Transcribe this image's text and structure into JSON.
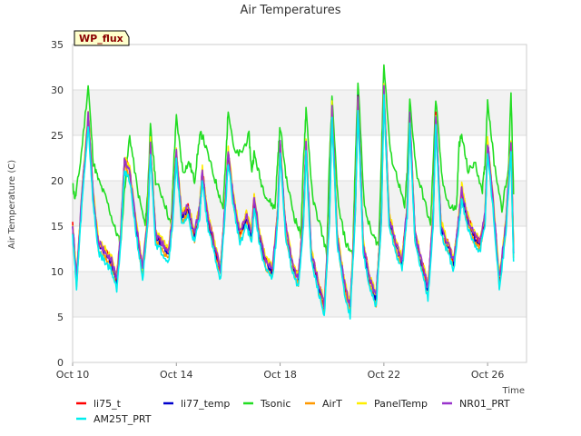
{
  "chart_data": {
    "type": "line",
    "title": "Air Temperatures",
    "xlabel": "Time",
    "ylabel": "Air Temperature (C)",
    "badge": "WP_flux",
    "ylim": [
      0,
      35
    ],
    "xlim": [
      0,
      17.5
    ],
    "y_ticks": [
      0,
      5,
      10,
      15,
      20,
      25,
      30,
      35
    ],
    "x_ticks": [
      {
        "pos": 0,
        "label": "Oct 10"
      },
      {
        "pos": 4,
        "label": "Oct 14"
      },
      {
        "pos": 8,
        "label": "Oct 18"
      },
      {
        "pos": 12,
        "label": "Oct 22"
      },
      {
        "pos": 16,
        "label": "Oct 26"
      }
    ],
    "grid": "horizontal shaded bands",
    "legend_position": "bottom",
    "x_unit": "days since Oct 10",
    "base_profile": {
      "x": [
        0.0,
        0.15,
        0.35,
        0.6,
        0.8,
        1.0,
        1.25,
        1.5,
        1.7,
        1.85,
        2.0,
        2.2,
        2.45,
        2.7,
        2.9,
        3.0,
        3.2,
        3.45,
        3.7,
        3.85,
        4.0,
        4.2,
        4.45,
        4.7,
        4.9,
        5.0,
        5.2,
        5.45,
        5.7,
        5.85,
        6.0,
        6.2,
        6.45,
        6.7,
        6.9,
        7.0,
        7.2,
        7.45,
        7.7,
        7.9,
        8.0,
        8.2,
        8.45,
        8.7,
        8.9,
        9.0,
        9.2,
        9.45,
        9.7,
        9.9,
        10.0,
        10.2,
        10.45,
        10.7,
        10.9,
        11.0,
        11.2,
        11.45,
        11.7,
        11.9,
        12.0,
        12.2,
        12.45,
        12.7,
        12.9,
        13.0,
        13.2,
        13.45,
        13.7,
        13.9,
        14.0,
        14.2,
        14.45,
        14.7,
        14.9,
        15.0,
        15.2,
        15.45,
        15.7,
        15.9,
        16.0,
        16.2,
        16.45,
        16.7,
        16.9,
        17.0
      ],
      "y": [
        15,
        9,
        18,
        27,
        18,
        13,
        12,
        11,
        9,
        14,
        22,
        21,
        15,
        10,
        16,
        24,
        14,
        13,
        12,
        16,
        23,
        16,
        17,
        14,
        17,
        21,
        16,
        13,
        10,
        16,
        23,
        18,
        14,
        16,
        14,
        18,
        14,
        11,
        10,
        16,
        24,
        15,
        11,
        9,
        16,
        24,
        12,
        9,
        6,
        16,
        28,
        14,
        9,
        6,
        17,
        29,
        13,
        9,
        7,
        16,
        30,
        16,
        13,
        11,
        17,
        27,
        14,
        11,
        8,
        16,
        27,
        15,
        13,
        11,
        16,
        19,
        16,
        14,
        13,
        16,
        24,
        18,
        9,
        15,
        24,
        12
      ]
    },
    "series": [
      {
        "name": "li75_t",
        "color": "#ff0000",
        "offset": 0.3
      },
      {
        "name": "li77_temp",
        "color": "#0000cd",
        "offset": 0.0
      },
      {
        "name": "Tsonic",
        "color": "#22dd22",
        "offset": 0.0
      },
      {
        "name": "AirT",
        "color": "#ff9900",
        "offset": -0.5
      },
      {
        "name": "PanelTemp",
        "color": "#ffee00",
        "offset": 0.5
      },
      {
        "name": "NR01_PRT",
        "color": "#9933cc",
        "offset": 0.2
      },
      {
        "name": "AM25T_PRT",
        "color": "#00eeee",
        "offset": -0.9
      }
    ],
    "tsonic": {
      "x": [
        0.0,
        0.1,
        0.3,
        0.6,
        0.8,
        1.0,
        1.3,
        1.6,
        1.85,
        2.0,
        2.2,
        2.5,
        2.8,
        2.9,
        3.0,
        3.2,
        3.5,
        3.8,
        3.9,
        4.0,
        4.25,
        4.5,
        4.7,
        4.9,
        5.0,
        5.3,
        5.6,
        5.8,
        5.9,
        6.0,
        6.25,
        6.5,
        6.8,
        6.9,
        7.0,
        7.25,
        7.5,
        7.8,
        7.9,
        8.0,
        8.25,
        8.55,
        8.8,
        8.9,
        9.0,
        9.25,
        9.55,
        9.8,
        9.9,
        10.0,
        10.25,
        10.55,
        10.8,
        10.9,
        11.0,
        11.25,
        11.55,
        11.8,
        11.9,
        12.0,
        12.25,
        12.55,
        12.8,
        12.9,
        13.0,
        13.25,
        13.55,
        13.8,
        13.9,
        14.0,
        14.25,
        14.55,
        14.8,
        14.9,
        15.0,
        15.25,
        15.5,
        15.8,
        15.9,
        16.0,
        16.25,
        16.55,
        16.8,
        16.9,
        17.0
      ],
      "y": [
        19.5,
        18,
        22,
        30.5,
        22,
        20,
        18,
        15,
        13,
        19,
        25,
        19,
        15,
        19,
        26,
        20,
        18,
        15,
        22,
        27,
        21,
        22,
        20,
        25,
        25,
        22,
        19,
        17,
        22,
        28,
        23,
        23,
        25,
        21,
        23,
        20,
        18,
        17,
        22,
        26,
        20,
        16,
        14,
        22,
        28,
        18,
        15,
        12,
        22,
        29,
        17,
        13,
        12,
        22,
        31,
        17,
        14,
        13,
        22,
        33,
        23,
        20,
        17,
        21,
        29,
        21,
        18,
        15,
        22,
        29,
        20,
        17,
        17,
        24,
        25,
        21,
        22,
        19,
        22,
        29,
        22,
        17,
        21,
        30,
        18.5
      ]
    }
  }
}
